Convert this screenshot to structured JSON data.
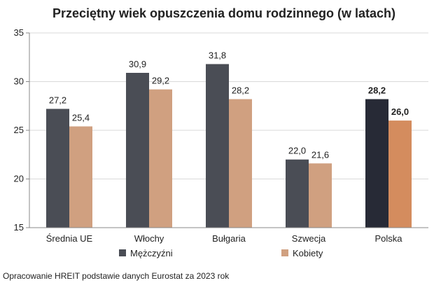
{
  "chart_data": {
    "type": "bar",
    "title": "Przeciętny wiek opuszczenia domu rodzinnego (w latach)",
    "xlabel": "",
    "ylabel": "",
    "ylim": [
      15,
      35
    ],
    "yticks": [
      15,
      20,
      25,
      30,
      35
    ],
    "grid": true,
    "legend_position": "bottom",
    "categories": [
      "Średnia UE",
      "Włochy",
      "Bułgaria",
      "Szwecja",
      "Polska"
    ],
    "series": [
      {
        "name": "Mężczyźni",
        "color": "#4a4d55",
        "highlight_color": "#272a36",
        "values": [
          27.2,
          30.9,
          31.8,
          22.0,
          28.2
        ],
        "labels": [
          "27,2",
          "30,9",
          "31,8",
          "22,0",
          "28,2"
        ]
      },
      {
        "name": "Kobiety",
        "color": "#d0a080",
        "highlight_color": "#d48c5e",
        "values": [
          25.4,
          29.2,
          28.2,
          21.6,
          26.0
        ],
        "labels": [
          "25,4",
          "29,2",
          "28,2",
          "21,6",
          "26,0"
        ]
      }
    ],
    "highlight_category": "Polska"
  },
  "footer": {
    "source": "Opracowanie HREIT podstawie danych Eurostat za 2023 rok"
  }
}
